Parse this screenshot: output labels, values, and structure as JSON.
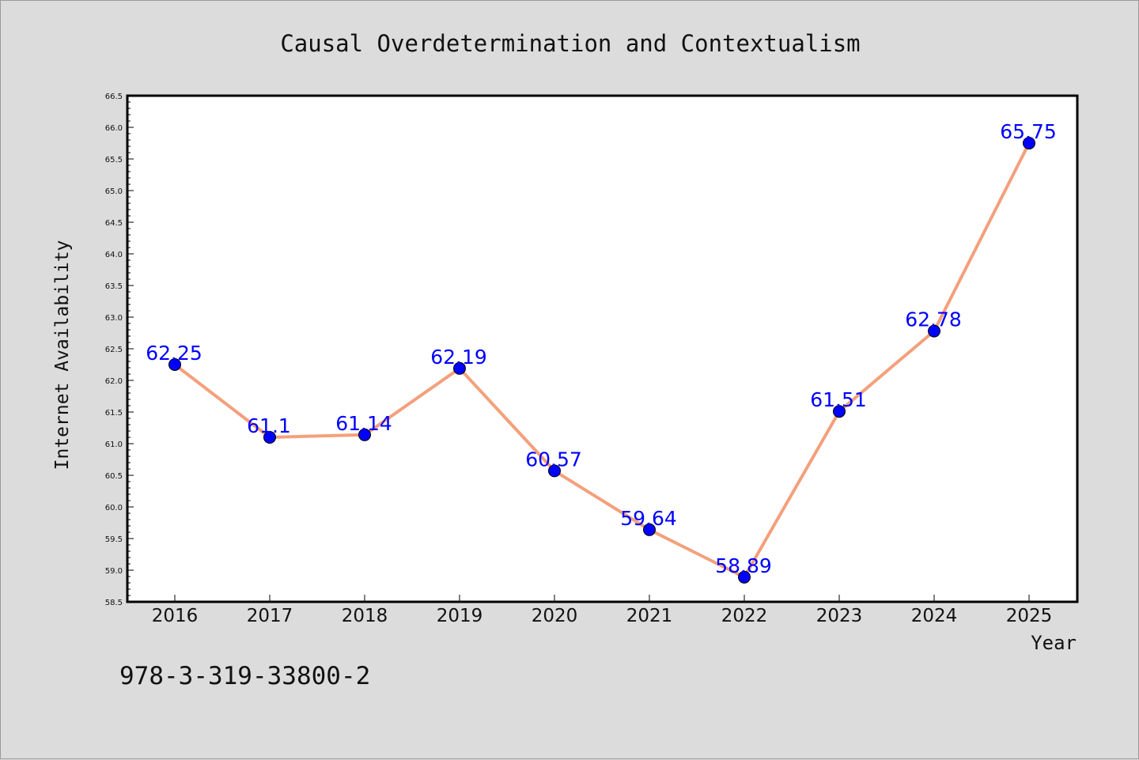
{
  "chart_data": {
    "type": "line",
    "title": "Causal Overdetermination and Contextualism",
    "xlabel": "Year",
    "ylabel": "Internet Availability",
    "categories": [
      "2016",
      "2017",
      "2018",
      "2019",
      "2020",
      "2021",
      "2022",
      "2023",
      "2024",
      "2025"
    ],
    "series": [
      {
        "values": [
          62.25,
          61.1,
          61.14,
          62.19,
          60.57,
          59.64,
          58.89,
          61.51,
          62.78,
          65.75
        ],
        "line_color": "#f4a07c",
        "marker_color": "#0000ff",
        "label_color": "#0000ff"
      }
    ],
    "ylim": [
      58.5,
      66.5
    ],
    "yticks": [
      "58.5",
      "59.0",
      "59.5",
      "60.0",
      "60.5",
      "61.0",
      "61.5",
      "62.0",
      "62.5",
      "63.0",
      "63.5",
      "64.0",
      "64.5",
      "65.0",
      "65.5",
      "66.0",
      "66.5"
    ],
    "grid": false,
    "legend": "none"
  },
  "footer_text": "978-3-319-33800-2",
  "colors": {
    "background": "#dcdcdc",
    "plot_background": "#ffffff",
    "axis": "#000000"
  }
}
